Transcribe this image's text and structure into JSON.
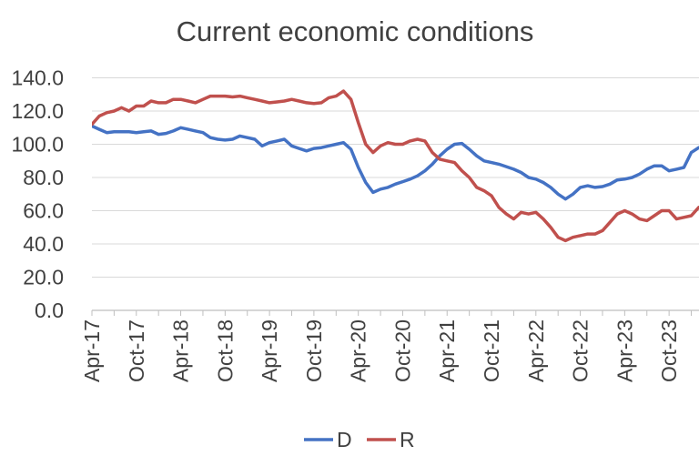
{
  "chart_data": {
    "type": "line",
    "title": "Current economic conditions",
    "xlabel": "",
    "ylabel": "",
    "ylim": [
      0,
      140
    ],
    "yticks": [
      "0.0",
      "20.0",
      "40.0",
      "60.0",
      "80.0",
      "100.0",
      "120.0",
      "140.0"
    ],
    "x_tick_labels": [
      "Apr-17",
      "Oct-17",
      "Apr-18",
      "Oct-18",
      "Apr-19",
      "Oct-19",
      "Apr-20",
      "Oct-20",
      "Apr-21",
      "Oct-21",
      "Apr-22",
      "Oct-22",
      "Apr-23",
      "Oct-23"
    ],
    "x": [
      "2017-04",
      "2017-05",
      "2017-06",
      "2017-07",
      "2017-08",
      "2017-09",
      "2017-10",
      "2017-11",
      "2017-12",
      "2018-01",
      "2018-02",
      "2018-03",
      "2018-04",
      "2018-05",
      "2018-06",
      "2018-07",
      "2018-08",
      "2018-09",
      "2018-10",
      "2018-11",
      "2018-12",
      "2019-01",
      "2019-02",
      "2019-03",
      "2019-04",
      "2019-05",
      "2019-06",
      "2019-07",
      "2019-08",
      "2019-09",
      "2019-10",
      "2019-11",
      "2019-12",
      "2020-01",
      "2020-02",
      "2020-03",
      "2020-04",
      "2020-05",
      "2020-06",
      "2020-07",
      "2020-08",
      "2020-09",
      "2020-10",
      "2020-11",
      "2020-12",
      "2021-01",
      "2021-02",
      "2021-03",
      "2021-04",
      "2021-05",
      "2021-06",
      "2021-07",
      "2021-08",
      "2021-09",
      "2021-10",
      "2021-11",
      "2021-12",
      "2022-01",
      "2022-02",
      "2022-03",
      "2022-04",
      "2022-05",
      "2022-06",
      "2022-07",
      "2022-08",
      "2022-09",
      "2022-10",
      "2022-11",
      "2022-12",
      "2023-01",
      "2023-02",
      "2023-03",
      "2023-04",
      "2023-05",
      "2023-06",
      "2023-07",
      "2023-08",
      "2023-09",
      "2023-10",
      "2023-11",
      "2023-12",
      "2024-01",
      "2024-02"
    ],
    "series": [
      {
        "name": "D",
        "color": "#4472c4",
        "values": [
          111,
          109,
          107,
          107.5,
          107.5,
          107.5,
          107,
          107.5,
          108,
          106,
          106.5,
          108,
          110,
          109,
          108,
          107,
          104,
          103,
          102.5,
          103,
          105,
          104,
          103,
          99,
          101,
          102,
          103,
          99,
          97.5,
          96,
          97.5,
          98,
          99,
          100,
          101,
          97,
          86,
          77,
          71,
          73,
          74,
          76,
          77.5,
          79,
          81,
          84,
          88,
          93,
          97,
          100,
          100.5,
          97,
          93,
          90,
          89,
          88,
          86.5,
          85,
          83,
          80,
          79,
          77,
          74,
          70,
          67,
          70,
          74,
          75,
          74,
          74.5,
          76,
          78.5,
          79,
          80,
          82,
          85,
          87,
          87,
          84,
          85,
          86,
          95,
          98
        ]
      },
      {
        "name": "R",
        "color": "#c0504d",
        "values": [
          112,
          117,
          119,
          120,
          122,
          120,
          123,
          123,
          126,
          125,
          125,
          127,
          127,
          126,
          125,
          127,
          129,
          129,
          129,
          128.5,
          129,
          128,
          127,
          126,
          125,
          125.5,
          126,
          127,
          126,
          125,
          124.5,
          125,
          128,
          129,
          132,
          127,
          113,
          100,
          95,
          99,
          101,
          100,
          100,
          102,
          103,
          102,
          95,
          91,
          90,
          89,
          84,
          80,
          74,
          72,
          69,
          62,
          58,
          55,
          59,
          58,
          59,
          55,
          50,
          44,
          42,
          44,
          45,
          46,
          46,
          48,
          53,
          58,
          60,
          58,
          55,
          54,
          57,
          60,
          60,
          55,
          56,
          57,
          62
        ]
      }
    ],
    "legend": {
      "position": "bottom",
      "entries": [
        "D",
        "R"
      ]
    },
    "grid": {
      "horizontal": true,
      "vertical": false
    }
  }
}
